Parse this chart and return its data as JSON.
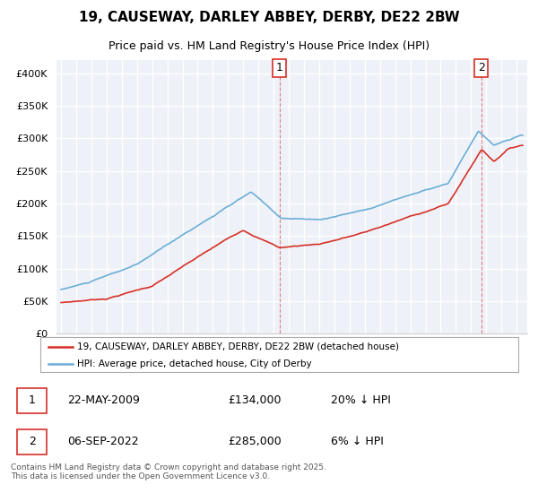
{
  "title": "19, CAUSEWAY, DARLEY ABBEY, DERBY, DE22 2BW",
  "subtitle": "Price paid vs. HM Land Registry's House Price Index (HPI)",
  "ylim": [
    0,
    420000
  ],
  "yticks": [
    0,
    50000,
    100000,
    150000,
    200000,
    250000,
    300000,
    350000,
    400000
  ],
  "ytick_labels": [
    "£0",
    "£50K",
    "£100K",
    "£150K",
    "£200K",
    "£250K",
    "£300K",
    "£350K",
    "£400K"
  ],
  "hpi_color": "#6baed6",
  "price_color": "#d73027",
  "marker1_year": 2009.39,
  "marker2_year": 2022.68,
  "legend_label1": "19, CAUSEWAY, DARLEY ABBEY, DERBY, DE22 2BW (detached house)",
  "legend_label2": "HPI: Average price, detached house, City of Derby",
  "table_row1": [
    "1",
    "22-MAY-2009",
    "£134,000",
    "20% ↓ HPI"
  ],
  "table_row2": [
    "2",
    "06-SEP-2022",
    "£285,000",
    "6% ↓ HPI"
  ],
  "footer": "Contains HM Land Registry data © Crown copyright and database right 2025.\nThis data is licensed under the Open Government Licence v3.0.",
  "background_color": "#eef2f8",
  "hpi_anchors_x": [
    1995.0,
    1997.0,
    2000.0,
    2004.0,
    2007.5,
    2009.5,
    2012.0,
    2015.0,
    2018.0,
    2020.5,
    2022.5,
    2023.5,
    2025.3
  ],
  "hpi_anchors_y": [
    68000,
    80000,
    105000,
    165000,
    215000,
    175000,
    172000,
    188000,
    212000,
    228000,
    308000,
    285000,
    300000
  ],
  "price_anchors_x": [
    1995.0,
    1998.0,
    2001.0,
    2004.0,
    2007.0,
    2009.39,
    2009.5,
    2012.0,
    2015.0,
    2018.0,
    2020.5,
    2022.68,
    2022.75,
    2023.5,
    2024.5,
    2025.3
  ],
  "price_anchors_y": [
    48000,
    55000,
    75000,
    118000,
    160000,
    134000,
    134000,
    140000,
    158000,
    182000,
    202000,
    285000,
    285000,
    268000,
    288000,
    293000
  ]
}
